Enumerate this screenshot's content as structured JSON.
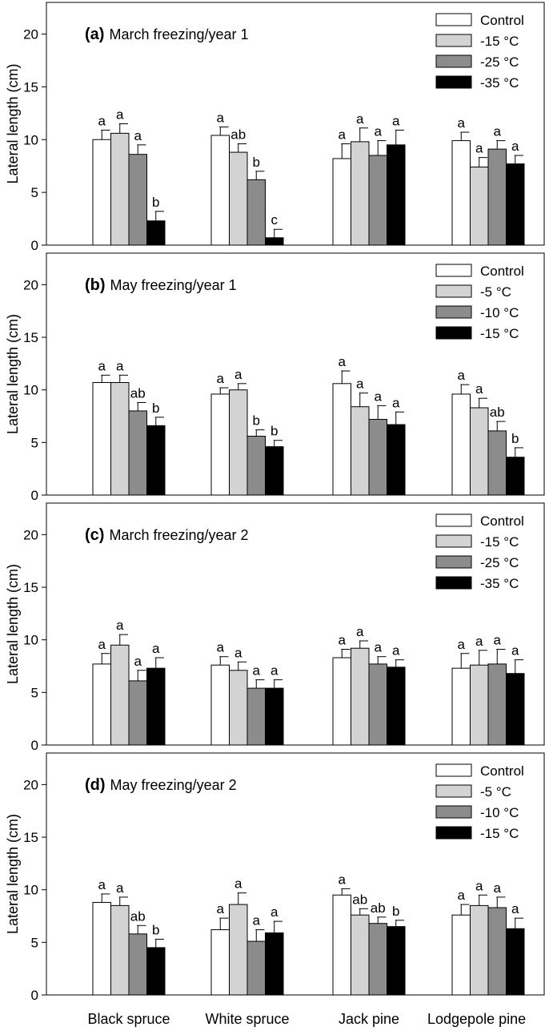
{
  "chart_data": {
    "type": "bar",
    "ylabel": "Lateral length (cm)",
    "ylim": [
      0,
      23
    ],
    "yticks": [
      0,
      5,
      10,
      15,
      20
    ],
    "categories": [
      "Black spruce",
      "White spruce",
      "Jack pine",
      "Lodgepole pine"
    ],
    "grid": false,
    "legend_position": "top-right",
    "series_colors": [
      "#ffffff",
      "#d3d3d3",
      "#8c8c8c",
      "#000000"
    ],
    "panels": [
      {
        "letter": "(a)",
        "title": "March freezing/year 1",
        "series": [
          {
            "name": "Control",
            "values": [
              10.0,
              10.4,
              8.2,
              9.9
            ],
            "errors": [
              0.9,
              0.8,
              1.4,
              0.8
            ],
            "letters": [
              "a",
              "a",
              "a",
              "a"
            ]
          },
          {
            "name": "-15 °C",
            "values": [
              10.6,
              8.8,
              9.8,
              7.4
            ],
            "errors": [
              0.9,
              0.8,
              1.3,
              0.9
            ],
            "letters": [
              "a",
              "ab",
              "a",
              "a"
            ]
          },
          {
            "name": "-25 °C",
            "values": [
              8.6,
              6.2,
              8.5,
              9.1
            ],
            "errors": [
              0.9,
              0.8,
              1.4,
              0.8
            ],
            "letters": [
              "a",
              "b",
              "a",
              "a"
            ]
          },
          {
            "name": "-35 °C",
            "values": [
              2.3,
              0.7,
              9.5,
              7.7
            ],
            "errors": [
              0.9,
              0.8,
              1.4,
              0.8
            ],
            "letters": [
              "b",
              "c",
              "a",
              "a"
            ]
          }
        ]
      },
      {
        "letter": "(b)",
        "title": "May freezing/year 1",
        "series": [
          {
            "name": "Control",
            "values": [
              10.7,
              9.6,
              10.6,
              9.6
            ],
            "errors": [
              0.7,
              0.6,
              1.2,
              0.9
            ],
            "letters": [
              "a",
              "a",
              "a",
              "a"
            ]
          },
          {
            "name": "-5 °C",
            "values": [
              10.7,
              10.0,
              8.4,
              8.3
            ],
            "errors": [
              0.7,
              0.6,
              1.3,
              0.9
            ],
            "letters": [
              "a",
              "a",
              "a",
              "a"
            ]
          },
          {
            "name": "-10 °C",
            "values": [
              8.0,
              5.6,
              7.2,
              6.1
            ],
            "errors": [
              0.8,
              0.6,
              1.3,
              0.9
            ],
            "letters": [
              "ab",
              "b",
              "a",
              "ab"
            ]
          },
          {
            "name": "-15 °C",
            "values": [
              6.6,
              4.6,
              6.7,
              3.6
            ],
            "errors": [
              0.8,
              0.6,
              1.2,
              0.9
            ],
            "letters": [
              "b",
              "b",
              "a",
              "b"
            ]
          }
        ]
      },
      {
        "letter": "(c)",
        "title": "March freezing/year 2",
        "series": [
          {
            "name": "Control",
            "values": [
              7.7,
              7.6,
              8.3,
              7.3
            ],
            "errors": [
              1.0,
              0.8,
              0.8,
              1.4
            ],
            "letters": [
              "a",
              "a",
              "a",
              "a"
            ]
          },
          {
            "name": "-15 °C",
            "values": [
              9.5,
              7.1,
              9.2,
              7.6
            ],
            "errors": [
              1.0,
              0.8,
              0.7,
              1.4
            ],
            "letters": [
              "a",
              "a",
              "a",
              "a"
            ]
          },
          {
            "name": "-25 °C",
            "values": [
              6.1,
              5.4,
              7.7,
              7.7
            ],
            "errors": [
              1.0,
              0.8,
              0.7,
              1.4
            ],
            "letters": [
              "a",
              "a",
              "a",
              "a"
            ]
          },
          {
            "name": "-35 °C",
            "values": [
              7.3,
              5.4,
              7.4,
              6.8
            ],
            "errors": [
              1.0,
              0.8,
              0.7,
              1.3
            ],
            "letters": [
              "a",
              "a",
              "a",
              "a"
            ]
          }
        ]
      },
      {
        "letter": "(d)",
        "title": "May freezing/year 2",
        "series": [
          {
            "name": "Control",
            "values": [
              8.8,
              6.2,
              9.5,
              7.6
            ],
            "errors": [
              0.8,
              1.1,
              0.6,
              1.0
            ],
            "letters": [
              "a",
              "a",
              "a",
              "a"
            ]
          },
          {
            "name": "-5 °C",
            "values": [
              8.5,
              8.6,
              7.6,
              8.5
            ],
            "errors": [
              0.8,
              1.1,
              0.6,
              1.0
            ],
            "letters": [
              "a",
              "a",
              "ab",
              "a"
            ]
          },
          {
            "name": "-10 °C",
            "values": [
              5.8,
              5.1,
              6.8,
              8.3
            ],
            "errors": [
              0.8,
              1.1,
              0.6,
              1.0
            ],
            "letters": [
              "ab",
              "a",
              "ab",
              "a"
            ]
          },
          {
            "name": "-15 °C",
            "values": [
              4.5,
              5.9,
              6.5,
              6.3
            ],
            "errors": [
              0.8,
              1.1,
              0.6,
              1.0
            ],
            "letters": [
              "b",
              "a",
              "b",
              "a"
            ]
          }
        ]
      }
    ]
  }
}
